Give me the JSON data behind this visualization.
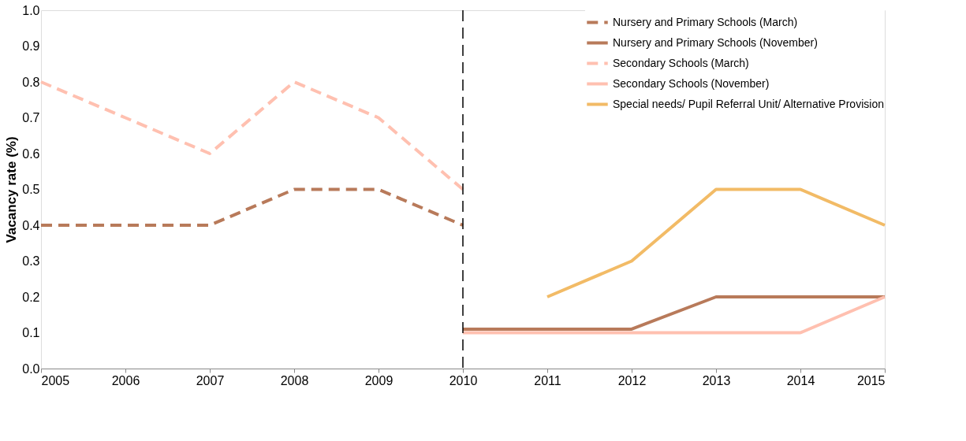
{
  "chart_data": {
    "type": "line",
    "ylabel": "Vacancy rate (%)",
    "x": [
      2005,
      2006,
      2007,
      2008,
      2009,
      2010,
      2011,
      2012,
      2013,
      2014,
      2015
    ],
    "xlim": [
      2005,
      2015
    ],
    "xticks": [
      2005,
      2006,
      2007,
      2008,
      2009,
      2010,
      2011,
      2012,
      2013,
      2014,
      2015
    ],
    "ylim": [
      0,
      1
    ],
    "yticks": [
      {
        "value": 0,
        "label": "0.0"
      },
      0.1,
      0.2,
      0.3,
      0.4,
      0.5,
      0.6,
      0.7,
      0.8,
      0.9,
      {
        "value": 1,
        "label": "1.0"
      }
    ],
    "grid": false,
    "legend": "top right",
    "marker": "none",
    "ref_lines": [
      {
        "axis": "x",
        "value": 2010,
        "color": "#000000",
        "line_style": "dashed"
      }
    ],
    "series": [
      {
        "name": "Nursery and Primary Schools (March)",
        "color": "#b87a5a",
        "line_style": "dashed",
        "values": [
          0.4,
          0.4,
          0.4,
          0.5,
          0.5,
          0.4,
          null,
          null,
          null,
          null,
          null
        ]
      },
      {
        "name": "Nursery and Primary Schools (November)",
        "color": "#b87a5a",
        "line_style": "solid",
        "values": [
          null,
          null,
          null,
          null,
          null,
          0.11,
          0.11,
          0.11,
          0.2,
          0.2,
          0.2
        ]
      },
      {
        "name": "Secondary Schools (March)",
        "color": "#ffc0b0",
        "line_style": "dashed",
        "values": [
          0.8,
          0.7,
          0.6,
          0.8,
          0.7,
          0.5,
          null,
          null,
          null,
          null,
          null
        ]
      },
      {
        "name": "Secondary Schools (November)",
        "color": "#ffc0b0",
        "line_style": "solid",
        "values": [
          null,
          null,
          null,
          null,
          null,
          0.1,
          0.1,
          0.1,
          0.1,
          0.1,
          0.2
        ]
      },
      {
        "name": "Special needs/ Pupil Referral Unit/ Alternative Provision",
        "color": "#f2bb66",
        "line_style": "solid",
        "values": [
          null,
          null,
          null,
          null,
          null,
          null,
          0.2,
          0.3,
          0.5,
          0.5,
          0.4
        ]
      }
    ]
  }
}
